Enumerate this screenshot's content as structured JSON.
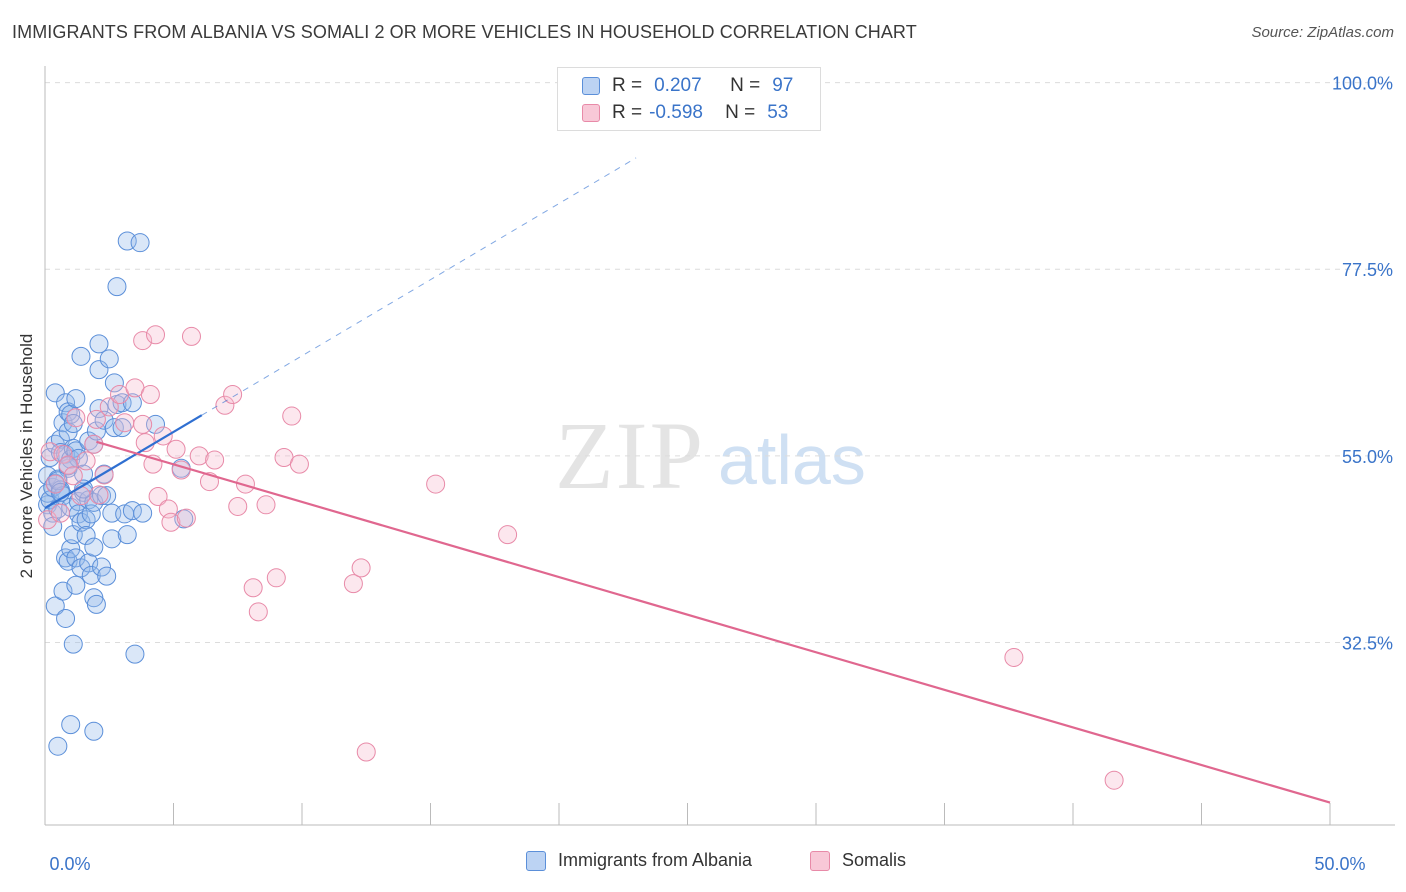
{
  "title": "IMMIGRANTS FROM ALBANIA VS SOMALI 2 OR MORE VEHICLES IN HOUSEHOLD CORRELATION CHART",
  "source": "Source: ZipAtlas.com",
  "watermark": {
    "zip": "ZIP",
    "atlas": "atlas"
  },
  "colors": {
    "blue": "#5b8fd9",
    "blue_line": "#2f6fd1",
    "pink": "#e88aa8",
    "pink_line": "#e0678f",
    "tick_label": "#3a74c9"
  },
  "legend_top": {
    "rows": [
      {
        "r_label": "R =",
        "r_value": "0.207",
        "n_label": "N =",
        "n_value": "97"
      },
      {
        "r_label": "R =",
        "r_value": "-0.598",
        "n_label": "N =",
        "n_value": "53"
      }
    ]
  },
  "chart_data": {
    "type": "scatter",
    "title": "IMMIGRANTS FROM ALBANIA VS SOMALI 2 OR MORE VEHICLES IN HOUSEHOLD CORRELATION CHART",
    "xlabel": "",
    "ylabel": "2 or more Vehicles in Household",
    "xlim": [
      0,
      50
    ],
    "ylim": [
      10.5,
      102
    ],
    "x_tick_labels": [
      {
        "value": 0,
        "label": "0.0%"
      },
      {
        "value": 50,
        "label": "50.0%"
      }
    ],
    "y_tick_labels": [
      {
        "value": 100,
        "label": "100.0%"
      },
      {
        "value": 77.5,
        "label": "77.5%"
      },
      {
        "value": 55,
        "label": "55.0%"
      },
      {
        "value": 32.5,
        "label": "32.5%"
      }
    ],
    "grid": true,
    "series": [
      {
        "name": "Immigrants from Albania",
        "R": 0.207,
        "N": 97,
        "trend": {
          "x": [
            0,
            6.1
          ],
          "y": [
            48.7,
            59.9
          ],
          "extend_to_x": 23
        },
        "points": [
          [
            0.1,
            49.1
          ],
          [
            0.1,
            50.5
          ],
          [
            0.1,
            52.6
          ],
          [
            0.2,
            54.8
          ],
          [
            0.2,
            49.7
          ],
          [
            0.3,
            51.2
          ],
          [
            0.3,
            48.1
          ],
          [
            0.3,
            46.5
          ],
          [
            0.4,
            62.6
          ],
          [
            0.4,
            56.4
          ],
          [
            0.4,
            51.7
          ],
          [
            0.4,
            36.9
          ],
          [
            0.5,
            48.6
          ],
          [
            0.5,
            52.2
          ],
          [
            0.5,
            20.0
          ],
          [
            0.6,
            57.0
          ],
          [
            0.6,
            55.4
          ],
          [
            0.6,
            50.9
          ],
          [
            0.7,
            59.0
          ],
          [
            0.7,
            50.2
          ],
          [
            0.7,
            38.7
          ],
          [
            0.8,
            61.4
          ],
          [
            0.8,
            55.2
          ],
          [
            0.8,
            42.7
          ],
          [
            0.8,
            35.4
          ],
          [
            0.9,
            60.3
          ],
          [
            0.9,
            57.9
          ],
          [
            0.9,
            53.5
          ],
          [
            0.9,
            42.3
          ],
          [
            1.0,
            60.0
          ],
          [
            1.0,
            54.6
          ],
          [
            1.0,
            48.8
          ],
          [
            1.0,
            43.8
          ],
          [
            1.0,
            22.6
          ],
          [
            1.1,
            55.9
          ],
          [
            1.1,
            45.5
          ],
          [
            1.1,
            32.3
          ],
          [
            1.1,
            58.9
          ],
          [
            1.2,
            61.9
          ],
          [
            1.2,
            55.6
          ],
          [
            1.2,
            42.7
          ],
          [
            1.2,
            39.4
          ],
          [
            1.3,
            49.5
          ],
          [
            1.3,
            54.7
          ],
          [
            1.3,
            48.0
          ],
          [
            1.4,
            67.0
          ],
          [
            1.4,
            47.0
          ],
          [
            1.4,
            41.5
          ],
          [
            1.5,
            50.6
          ],
          [
            1.5,
            52.8
          ],
          [
            1.6,
            47.3
          ],
          [
            1.6,
            45.4
          ],
          [
            1.7,
            56.8
          ],
          [
            1.7,
            49.7
          ],
          [
            1.7,
            42.1
          ],
          [
            1.8,
            48.0
          ],
          [
            1.8,
            40.6
          ],
          [
            1.9,
            56.4
          ],
          [
            1.9,
            49.4
          ],
          [
            1.9,
            44.0
          ],
          [
            1.9,
            37.9
          ],
          [
            1.9,
            21.8
          ],
          [
            2.0,
            58.0
          ],
          [
            2.0,
            37.1
          ],
          [
            2.1,
            68.5
          ],
          [
            2.1,
            65.4
          ],
          [
            2.1,
            60.7
          ],
          [
            2.2,
            50.2
          ],
          [
            2.2,
            41.6
          ],
          [
            2.3,
            59.3
          ],
          [
            2.3,
            52.8
          ],
          [
            2.4,
            50.2
          ],
          [
            2.4,
            40.5
          ],
          [
            2.5,
            66.7
          ],
          [
            2.6,
            48.1
          ],
          [
            2.6,
            45.0
          ],
          [
            2.7,
            63.8
          ],
          [
            2.7,
            58.4
          ],
          [
            2.8,
            61.2
          ],
          [
            2.8,
            75.4
          ],
          [
            3.0,
            58.4
          ],
          [
            3.0,
            61.4
          ],
          [
            3.1,
            48.0
          ],
          [
            3.2,
            80.9
          ],
          [
            3.2,
            45.5
          ],
          [
            3.4,
            48.4
          ],
          [
            3.4,
            61.4
          ],
          [
            3.5,
            31.1
          ],
          [
            3.7,
            80.7
          ],
          [
            3.8,
            48.1
          ],
          [
            4.3,
            58.8
          ],
          [
            5.3,
            53.5
          ],
          [
            5.4,
            47.4
          ],
          [
            0.5,
            52.0
          ],
          [
            1.5,
            51.0
          ],
          [
            0.6,
            50.6
          ],
          [
            0.9,
            53.8
          ]
        ]
      },
      {
        "name": "Somalis",
        "R": -0.598,
        "N": 53,
        "trend": {
          "x": [
            2.0,
            50.0
          ],
          "y": [
            56.7,
            13.2
          ]
        },
        "points": [
          [
            0.1,
            47.3
          ],
          [
            0.2,
            55.5
          ],
          [
            0.4,
            51.6
          ],
          [
            0.6,
            48.1
          ],
          [
            0.7,
            55.2
          ],
          [
            0.9,
            53.9
          ],
          [
            1.1,
            52.6
          ],
          [
            1.2,
            59.6
          ],
          [
            1.4,
            50.2
          ],
          [
            1.6,
            54.4
          ],
          [
            1.9,
            56.4
          ],
          [
            2.0,
            59.4
          ],
          [
            2.1,
            50.3
          ],
          [
            2.3,
            52.7
          ],
          [
            2.5,
            60.9
          ],
          [
            2.9,
            62.4
          ],
          [
            3.1,
            59.0
          ],
          [
            3.5,
            63.2
          ],
          [
            3.8,
            58.8
          ],
          [
            3.9,
            56.6
          ],
          [
            4.1,
            62.4
          ],
          [
            4.2,
            54.0
          ],
          [
            4.4,
            50.1
          ],
          [
            4.6,
            57.4
          ],
          [
            4.8,
            48.6
          ],
          [
            4.9,
            47.0
          ],
          [
            5.1,
            55.8
          ],
          [
            5.3,
            53.3
          ],
          [
            5.5,
            47.5
          ],
          [
            5.7,
            69.4
          ],
          [
            6.0,
            55.0
          ],
          [
            6.4,
            51.9
          ],
          [
            6.6,
            54.5
          ],
          [
            7.0,
            61.1
          ],
          [
            7.3,
            62.4
          ],
          [
            7.5,
            48.9
          ],
          [
            7.8,
            51.6
          ],
          [
            8.1,
            39.1
          ],
          [
            8.3,
            36.2
          ],
          [
            8.6,
            49.1
          ],
          [
            9.0,
            40.3
          ],
          [
            9.3,
            54.8
          ],
          [
            9.6,
            59.8
          ],
          [
            9.9,
            54.0
          ],
          [
            12.0,
            39.6
          ],
          [
            12.3,
            41.5
          ],
          [
            12.5,
            19.3
          ],
          [
            15.2,
            51.6
          ],
          [
            18.0,
            45.5
          ],
          [
            37.7,
            30.7
          ],
          [
            41.6,
            15.9
          ],
          [
            3.8,
            68.9
          ],
          [
            4.3,
            69.6
          ]
        ]
      }
    ]
  },
  "legend_bottom": [
    "Immigrants from Albania",
    "Somalis"
  ]
}
